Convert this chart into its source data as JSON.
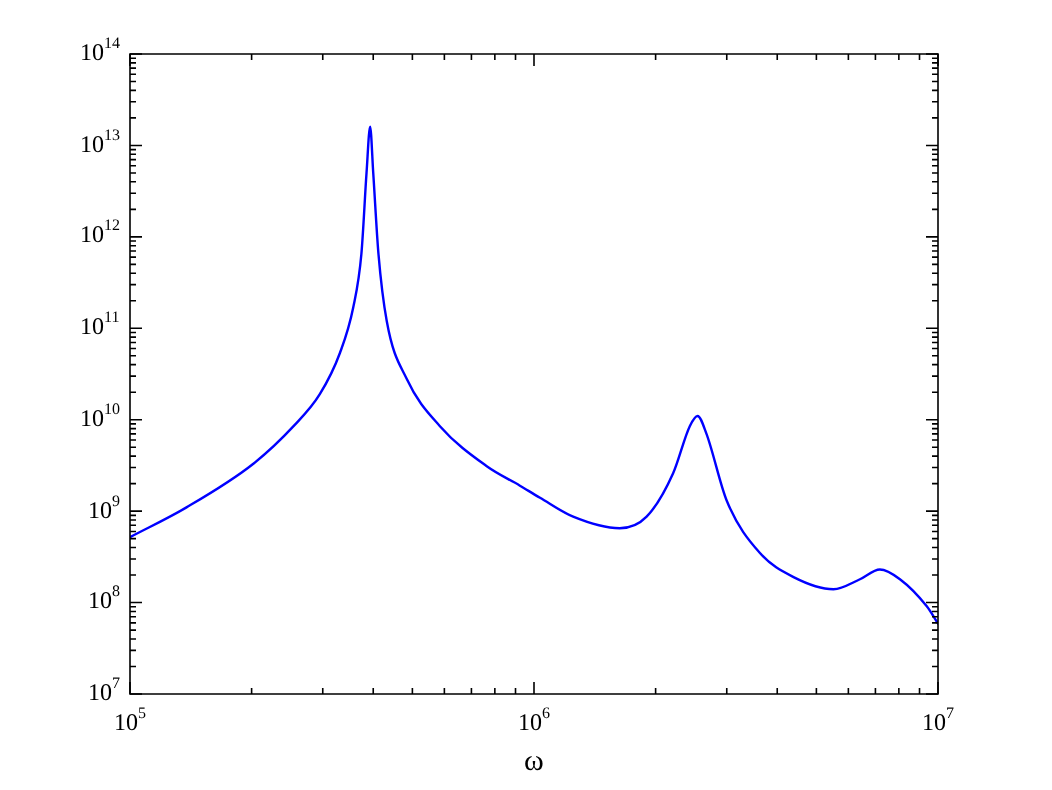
{
  "chart_data": {
    "type": "line",
    "xlabel": "ω",
    "log": "xy",
    "grid": false,
    "legend": false,
    "marker": "none",
    "line_style": "solid",
    "xlim": [
      100000,
      10000000
    ],
    "ylim": [
      10000000,
      100000000000000
    ],
    "xticks": [
      {
        "value": 100000,
        "label": "10$^{5}$"
      },
      {
        "value": 1000000,
        "label": "10$^{6}$"
      },
      {
        "value": 10000000,
        "label": "10$^{7}$"
      }
    ],
    "yticks": [
      {
        "value": 10000000,
        "label": "10$^{7}$"
      },
      {
        "value": 100000000,
        "label": "10$^{8}$"
      },
      {
        "value": 1000000000,
        "label": "10$^{9}$"
      },
      {
        "value": 10000000000,
        "label": "10$^{10}$"
      },
      {
        "value": 100000000000,
        "label": "10$^{11}$"
      },
      {
        "value": 1000000000000,
        "label": "10$^{12}$"
      },
      {
        "value": 10000000000000,
        "label": "10$^{13}$"
      },
      {
        "value": 100000000000000,
        "label": "10$^{14}$"
      }
    ],
    "x": [
      100000,
      138000,
      202000,
      254000,
      295000,
      331000,
      357000,
      374000,
      385000,
      393000,
      400000,
      412000,
      432000,
      484000,
      585000,
      764000,
      923000,
      1035000,
      1250000,
      1630000,
      1900000,
      2210000,
      2430000,
      2540000,
      2670000,
      3000000,
      3620000,
      4390000,
      5510000,
      6410000,
      7180000,
      8050000,
      9380000,
      10000000
    ],
    "series": [
      {
        "color": "#0000ff",
        "values": [
          520000000,
          1100000000,
          3300000000,
          8500000000,
          19000000000,
          54000000000,
          170000000000,
          660000000000,
          5000000000000,
          16000000000000,
          5000000000000,
          660000000000,
          120000000000,
          28000000000,
          8500000000,
          3100000000,
          1900000000,
          1400000000,
          870000000,
          650000000,
          870000000,
          2600000000,
          8500000000,
          11000000000,
          7100000000,
          1300000000,
          350000000,
          190000000,
          140000000,
          180000000,
          230000000,
          180000000,
          91000000,
          59000000
        ]
      }
    ]
  }
}
